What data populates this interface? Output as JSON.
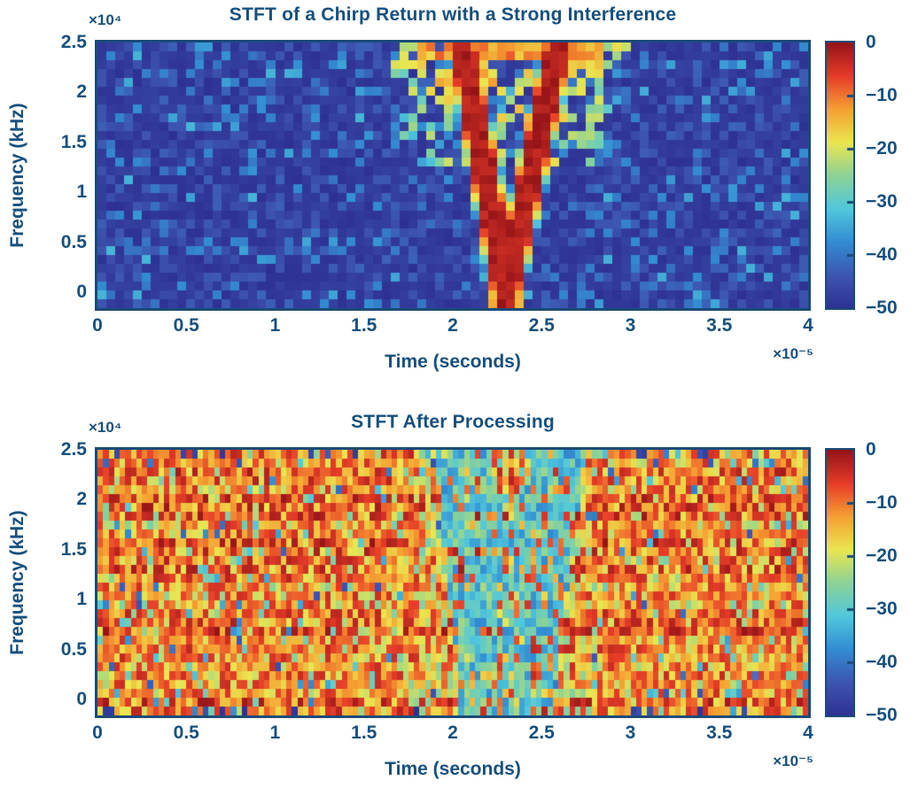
{
  "figure": {
    "background": "#ffffff",
    "text_color": "#17507e",
    "frame_color": "#1b4b78"
  },
  "chart_data": [
    {
      "type": "heatmap",
      "title": "STFT of a Chirp Return with a Strong Interference",
      "xlabel": "Time (seconds)",
      "ylabel": "Frequency (kHz)",
      "x_multiplier": "×10⁻⁵",
      "y_multiplier": "×10⁴",
      "x_ticks": [
        "0",
        "0.5",
        "1",
        "1.5",
        "2",
        "2.5",
        "3",
        "3.5",
        "4"
      ],
      "y_ticks": [
        "2.5",
        "2",
        "1.5",
        "1",
        "0.5",
        "0"
      ],
      "x_range": [
        0,
        4
      ],
      "y_range": [
        -0.156,
        2.5
      ],
      "grid": false,
      "colormap": "jet (print)",
      "colormap_stops": [
        "#2e3192",
        "#3d55b0",
        "#328cd2",
        "#50c8dc",
        "#8cd296",
        "#ebe650",
        "#f5a032",
        "#e63c28",
        "#961419"
      ],
      "color_limits_db": [
        -50,
        0
      ],
      "colorbar_ticks": [
        "0",
        "−10",
        "−20",
        "−30",
        "−40",
        "−50"
      ],
      "colorbar_position": "right",
      "content": {
        "noise_floor_db": -50,
        "noise_speckle_db_range": [
          -47,
          -36
        ],
        "chirp": {
          "shape": "V",
          "peak_db": 0,
          "vertex_time": 2.3,
          "vertex_freq": 0,
          "top_freq": 2.5,
          "left_branch_top_time": 2.05,
          "right_branch_top_time": 2.6,
          "core_halfwidth": 0.055,
          "edge_falloff": 0.06,
          "wing_spread": 0.42
        }
      },
      "render": {
        "grid_cols": 80,
        "grid_rows": 30,
        "seed": 21
      }
    },
    {
      "type": "heatmap",
      "title": "STFT After Processing",
      "xlabel": "Time (seconds)",
      "ylabel": "Frequency (kHz)",
      "x_multiplier": "×10⁻⁵",
      "y_multiplier": "×10⁴",
      "x_ticks": [
        "0",
        "0.5",
        "1",
        "1.5",
        "2",
        "2.5",
        "3",
        "3.5",
        "4"
      ],
      "y_ticks": [
        "2.5",
        "2",
        "1.5",
        "1",
        "0.5",
        "0"
      ],
      "x_range": [
        0,
        4
      ],
      "y_range": [
        -0.156,
        2.5
      ],
      "grid": false,
      "colormap": "jet (print)",
      "colormap_stops": [
        "#2e3192",
        "#3d55b0",
        "#328cd2",
        "#50c8dc",
        "#8cd296",
        "#ebe650",
        "#f5a032",
        "#e63c28",
        "#961419"
      ],
      "color_limits_db": [
        -50,
        0
      ],
      "colorbar_ticks": [
        "0",
        "−10",
        "−20",
        "−30",
        "−40",
        "−50"
      ],
      "colorbar_position": "right",
      "content": {
        "noise_db_range": [
          -22,
          0
        ],
        "speck_db_range": [
          -45,
          -25
        ],
        "notch": {
          "shape": "V",
          "db_range": [
            -38,
            -20
          ],
          "vertex_time": 2.3,
          "top_freq": 2.5,
          "left_branch_top_time": 2.05,
          "right_branch_top_time": 2.6,
          "halfwidth": 0.2
        }
      },
      "render": {
        "grid_cols": 128,
        "grid_rows": 30,
        "seed": 77
      }
    }
  ]
}
